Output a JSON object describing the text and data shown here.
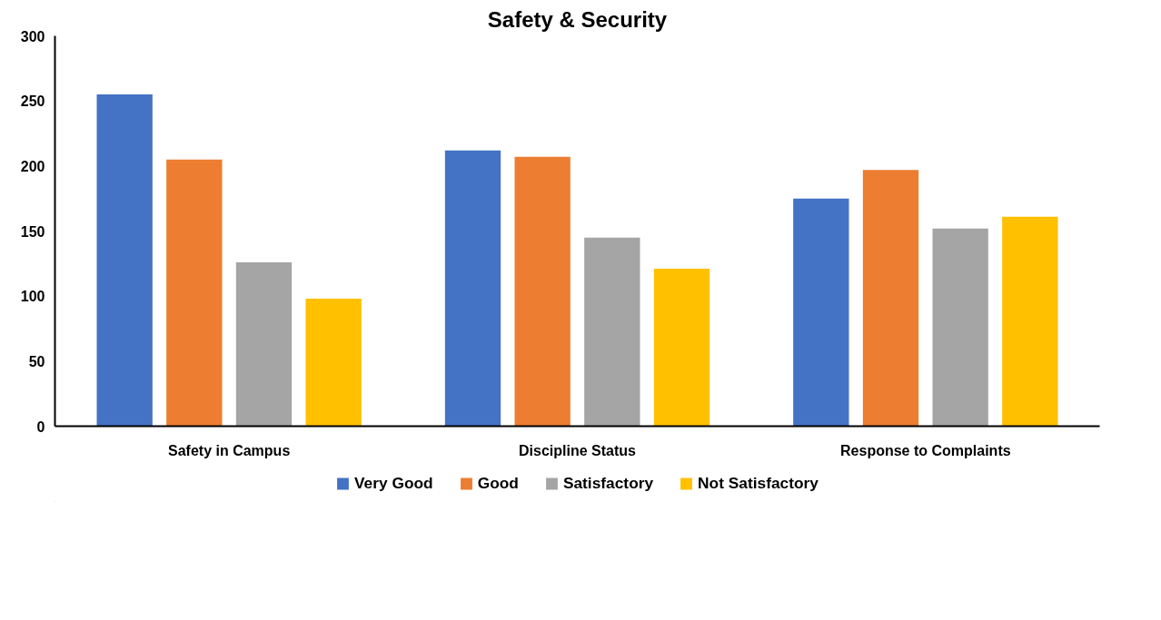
{
  "chart_data": {
    "type": "bar",
    "title": "Safety & Security",
    "categories": [
      "Safety in Campus",
      "Discipline Status",
      "Response to Complaints"
    ],
    "series": [
      {
        "name": "Very Good",
        "color": "#4472c4",
        "values": [
          255,
          212,
          175
        ]
      },
      {
        "name": "Good",
        "color": "#ed7d31",
        "values": [
          205,
          207,
          197
        ]
      },
      {
        "name": "Satisfactory",
        "color": "#a5a5a5",
        "values": [
          126,
          145,
          152
        ]
      },
      {
        "name": "Not Satisfactory",
        "color": "#ffc000",
        "values": [
          98,
          121,
          161
        ]
      }
    ],
    "ylim": [
      0,
      300
    ],
    "yticks": [
      0,
      50,
      100,
      150,
      200,
      250,
      300
    ],
    "grid": false,
    "legend": "bottom"
  }
}
